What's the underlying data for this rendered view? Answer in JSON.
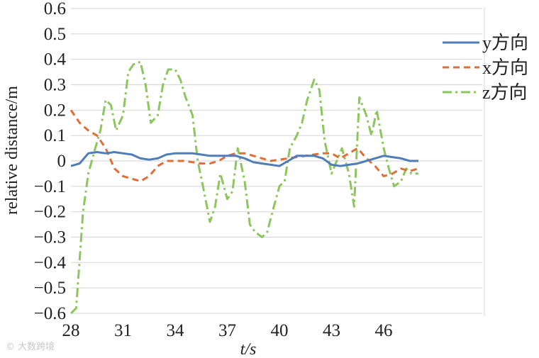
{
  "chart_data": {
    "type": "line",
    "xlabel": "t/s",
    "ylabel": "relative distance/m",
    "xlim": [
      28,
      48
    ],
    "ylim": [
      -0.6,
      0.6
    ],
    "xticks": [
      "28",
      "31",
      "34",
      "37",
      "40",
      "43",
      "46"
    ],
    "yticks": [
      "0.6",
      "0.5",
      "0.4",
      "0.3",
      "0.2",
      "0.1",
      "0",
      "−0.1",
      "−0.2",
      "−0.3",
      "−0.4",
      "−0.5",
      "−0.6"
    ],
    "grid": true,
    "legend_position": "right",
    "series": [
      {
        "name": "y方向",
        "color": "#4e7db8",
        "style": "solid",
        "x": [
          28.0,
          28.5,
          29.0,
          29.5,
          30.0,
          30.5,
          31.0,
          31.5,
          32.0,
          32.5,
          33.0,
          33.5,
          34.0,
          34.5,
          35.0,
          35.5,
          36.0,
          36.5,
          37.0,
          37.5,
          38.0,
          38.5,
          39.0,
          39.5,
          40.0,
          40.5,
          41.0,
          41.5,
          42.0,
          42.5,
          43.0,
          43.5,
          44.0,
          44.5,
          45.0,
          45.5,
          46.0,
          46.5,
          47.0,
          47.5,
          48.0
        ],
        "y": [
          -0.02,
          -0.01,
          0.03,
          0.035,
          0.03,
          0.035,
          0.03,
          0.025,
          0.01,
          0.005,
          0.01,
          0.025,
          0.03,
          0.03,
          0.03,
          0.025,
          0.02,
          0.02,
          0.02,
          0.02,
          0.01,
          -0.005,
          -0.01,
          -0.015,
          -0.02,
          0.0,
          0.02,
          0.02,
          0.02,
          0.01,
          -0.015,
          -0.02,
          -0.015,
          -0.01,
          0.0,
          0.01,
          0.02,
          0.015,
          0.01,
          0.0,
          0.0
        ]
      },
      {
        "name": "x方向",
        "color": "#dd6f37",
        "style": "dashed",
        "x": [
          28.0,
          28.5,
          29.0,
          29.5,
          30.0,
          30.5,
          31.0,
          31.5,
          32.0,
          32.5,
          33.0,
          33.5,
          34.0,
          34.5,
          35.0,
          35.5,
          36.0,
          36.5,
          37.0,
          37.5,
          38.0,
          38.5,
          39.0,
          39.5,
          40.0,
          40.5,
          41.0,
          41.5,
          42.0,
          42.5,
          43.0,
          43.5,
          44.0,
          44.5,
          45.0,
          45.5,
          46.0,
          46.5,
          47.0,
          47.5,
          48.0
        ],
        "y": [
          0.2,
          0.15,
          0.12,
          0.1,
          0.05,
          -0.03,
          -0.06,
          -0.07,
          -0.08,
          -0.06,
          -0.02,
          0.0,
          0.0,
          0.0,
          -0.005,
          -0.01,
          -0.01,
          0.0,
          0.02,
          0.03,
          0.03,
          0.02,
          0.01,
          0.0,
          0.005,
          0.01,
          0.015,
          0.02,
          0.025,
          0.03,
          0.03,
          0.01,
          0.03,
          0.05,
          0.01,
          -0.02,
          -0.06,
          -0.05,
          -0.03,
          -0.04,
          -0.03
        ]
      },
      {
        "name": "z方向",
        "color": "#8dc65c",
        "style": "dashdot",
        "x": [
          28.0,
          28.3,
          28.7,
          29.0,
          29.4,
          29.7,
          30.0,
          30.3,
          30.6,
          31.0,
          31.3,
          31.6,
          32.0,
          32.3,
          32.6,
          33.0,
          33.3,
          33.6,
          34.0,
          34.3,
          34.6,
          35.0,
          35.3,
          35.6,
          36.0,
          36.3,
          36.6,
          37.0,
          37.3,
          37.6,
          38.0,
          38.3,
          38.6,
          39.0,
          39.3,
          39.6,
          40.0,
          40.3,
          40.6,
          41.0,
          41.3,
          41.6,
          42.0,
          42.3,
          42.6,
          43.0,
          43.3,
          43.6,
          44.0,
          44.3,
          44.6,
          45.0,
          45.3,
          45.6,
          46.0,
          46.3,
          46.6,
          47.0,
          47.3,
          47.6,
          48.0
        ],
        "y": [
          -0.6,
          -0.58,
          -0.2,
          -0.05,
          0.05,
          0.12,
          0.24,
          0.22,
          0.12,
          0.18,
          0.35,
          0.38,
          0.39,
          0.3,
          0.15,
          0.18,
          0.3,
          0.36,
          0.36,
          0.32,
          0.25,
          0.18,
          0.0,
          -0.1,
          -0.24,
          -0.18,
          -0.05,
          -0.15,
          -0.12,
          0.05,
          -0.08,
          -0.25,
          -0.28,
          -0.3,
          -0.28,
          -0.2,
          -0.1,
          -0.08,
          0.05,
          0.1,
          0.15,
          0.24,
          0.32,
          0.28,
          0.08,
          -0.05,
          0.0,
          0.05,
          -0.05,
          -0.18,
          0.25,
          0.18,
          0.1,
          0.2,
          0.05,
          -0.03,
          -0.1,
          -0.08,
          -0.03,
          -0.05,
          -0.05
        ]
      }
    ]
  },
  "watermark": "© 大数跨境"
}
